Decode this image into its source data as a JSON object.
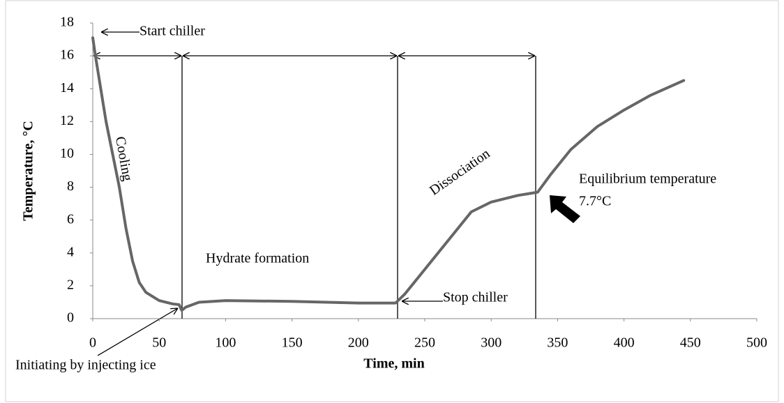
{
  "chart_data": {
    "type": "line",
    "x_label": "Time, min",
    "y_label": "Temperature, °C",
    "x": [
      0,
      2,
      5,
      10,
      15,
      20,
      25,
      30,
      35,
      40,
      50,
      60,
      65,
      67,
      70,
      80,
      100,
      150,
      200,
      228,
      235,
      250,
      270,
      285,
      300,
      320,
      335,
      345,
      360,
      380,
      400,
      420,
      445
    ],
    "values": [
      17.1,
      16,
      14.5,
      12,
      10,
      8,
      5.5,
      3.5,
      2.2,
      1.6,
      1.1,
      0.9,
      0.85,
      0.5,
      0.7,
      1.0,
      1.1,
      1.05,
      0.95,
      0.95,
      1.5,
      3,
      5,
      6.5,
      7.1,
      7.5,
      7.7,
      8.8,
      10.3,
      11.7,
      12.7,
      13.6,
      14.5
    ],
    "color": "#666666",
    "xlim": [
      0,
      500
    ],
    "xticks": [
      0,
      50,
      100,
      150,
      200,
      250,
      300,
      350,
      400,
      450,
      500
    ],
    "ylim": [
      0,
      18
    ],
    "yticks": [
      0,
      2,
      4,
      6,
      8,
      10,
      12,
      14,
      16,
      18
    ],
    "annotations": [
      "Start chiller",
      "Cooling",
      "Hydrate formation",
      "Dissociation",
      "Stop chiller",
      "Equilibrium temperature",
      "7.7°C",
      "Initiating by injecting ice"
    ]
  }
}
